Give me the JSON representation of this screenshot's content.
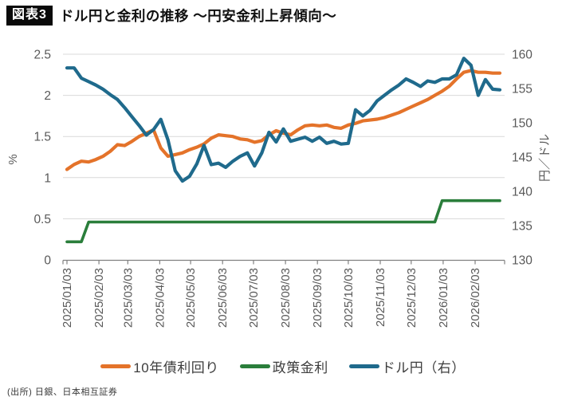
{
  "header": {
    "figure_label": "図表3",
    "title": "ドル円と金利の推移 〜円安金利上昇傾向〜"
  },
  "footer": {
    "source": "(出所) 日銀、日本相互証券"
  },
  "colors": {
    "gridline": "#d9d9d9",
    "axis_line": "#808080",
    "tick_label": "#595959",
    "orange": "#e4732a",
    "green": "#2a7e3b",
    "blue": "#1f6a8c"
  },
  "chart_data": {
    "type": "line",
    "title": "ドル円と金利の推移 〜円安金利上昇傾向〜",
    "x_frequency": "weekly",
    "x_start": "2025/01/03",
    "x_end": "2026/02/27",
    "x_tick_labels": [
      "2025/01/03",
      "2025/02/03",
      "2025/03/03",
      "2025/04/03",
      "2025/05/03",
      "2025/06/03",
      "2025/07/03",
      "2025/08/03",
      "2025/09/03",
      "2025/10/03",
      "2025/11/03",
      "2025/12/03",
      "2026/01/03",
      "2026/02/03"
    ],
    "left_axis": {
      "label": "%",
      "min": 0,
      "max": 2.5,
      "ticks": [
        "0",
        "0.5",
        "1",
        "1.5",
        "2",
        "2.5"
      ]
    },
    "right_axis": {
      "label": "円／ドル",
      "min": 130,
      "max": 160,
      "ticks": [
        "130",
        "135",
        "140",
        "145",
        "150",
        "155",
        "160"
      ]
    },
    "grid": "horizontal",
    "legend_position": "bottom",
    "series": [
      {
        "id": "10y-yield",
        "name": "10年債利回り",
        "axis": "left",
        "color": "#e4732a",
        "values": [
          1.1,
          1.16,
          1.2,
          1.19,
          1.22,
          1.26,
          1.32,
          1.4,
          1.39,
          1.44,
          1.5,
          1.54,
          1.58,
          1.36,
          1.26,
          1.28,
          1.3,
          1.34,
          1.37,
          1.41,
          1.48,
          1.52,
          1.51,
          1.5,
          1.47,
          1.46,
          1.43,
          1.45,
          1.52,
          1.57,
          1.54,
          1.52,
          1.58,
          1.63,
          1.64,
          1.63,
          1.64,
          1.61,
          1.6,
          1.64,
          1.66,
          1.69,
          1.7,
          1.71,
          1.73,
          1.76,
          1.79,
          1.83,
          1.87,
          1.91,
          1.95,
          2.0,
          2.05,
          2.11,
          2.2,
          2.28,
          2.3,
          2.28,
          2.28,
          2.27,
          2.27
        ]
      },
      {
        "id": "policy-rate",
        "name": "政策金利",
        "axis": "left",
        "color": "#2a7e3b",
        "values": [
          0.22,
          0.22,
          0.22,
          0.46,
          0.46,
          0.46,
          0.46,
          0.46,
          0.46,
          0.46,
          0.46,
          0.46,
          0.46,
          0.46,
          0.46,
          0.46,
          0.46,
          0.46,
          0.46,
          0.46,
          0.46,
          0.46,
          0.46,
          0.46,
          0.46,
          0.46,
          0.46,
          0.46,
          0.46,
          0.46,
          0.46,
          0.46,
          0.46,
          0.46,
          0.46,
          0.46,
          0.46,
          0.46,
          0.46,
          0.46,
          0.46,
          0.46,
          0.46,
          0.46,
          0.46,
          0.46,
          0.46,
          0.46,
          0.46,
          0.46,
          0.46,
          0.46,
          0.72,
          0.72,
          0.72,
          0.72,
          0.72,
          0.72,
          0.72,
          0.72,
          0.72
        ]
      },
      {
        "id": "usd-jpy",
        "name": "ドル円（右）",
        "axis": "right",
        "color": "#1f6a8c",
        "values": [
          158.0,
          158.0,
          156.5,
          156.0,
          155.5,
          154.9,
          154.1,
          153.4,
          152.2,
          150.9,
          149.6,
          148.2,
          149.0,
          150.5,
          147.5,
          143.0,
          141.5,
          142.2,
          144.0,
          146.7,
          143.9,
          144.1,
          143.5,
          144.4,
          145.1,
          145.6,
          143.7,
          145.6,
          148.6,
          147.2,
          149.1,
          147.3,
          147.6,
          147.9,
          147.3,
          147.9,
          147.0,
          147.3,
          146.9,
          147.0,
          151.9,
          151.0,
          151.8,
          153.2,
          154.0,
          154.8,
          155.5,
          156.4,
          155.9,
          155.3,
          156.1,
          155.9,
          156.4,
          156.4,
          157.0,
          159.4,
          158.4,
          154.0,
          156.3,
          154.9,
          154.8
        ]
      }
    ]
  }
}
